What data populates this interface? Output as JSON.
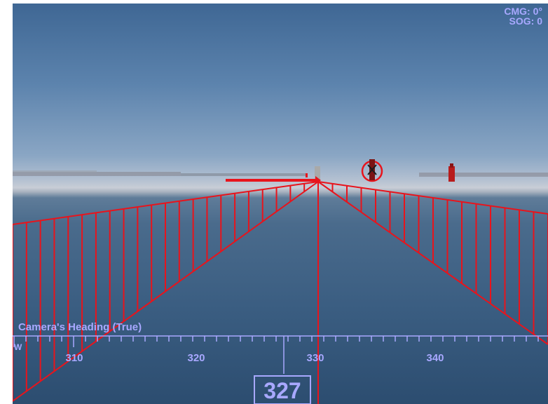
{
  "hud": {
    "cmg": "CMG: 0°",
    "sog": "SOG: 0",
    "camera_heading_label": "Camera's Heading (True)",
    "compass_west_label": "W",
    "current_heading": "327",
    "tick_labels": [
      "310",
      "320",
      "330",
      "340"
    ]
  },
  "colors": {
    "overlay": "#e8141c",
    "hud_text": "#a8a8ff",
    "buoy": "#b81c1c"
  },
  "icons": {
    "target": "circled-buoy-icon",
    "buoy": "buoy-icon",
    "hud": "compass-scale-icon"
  }
}
